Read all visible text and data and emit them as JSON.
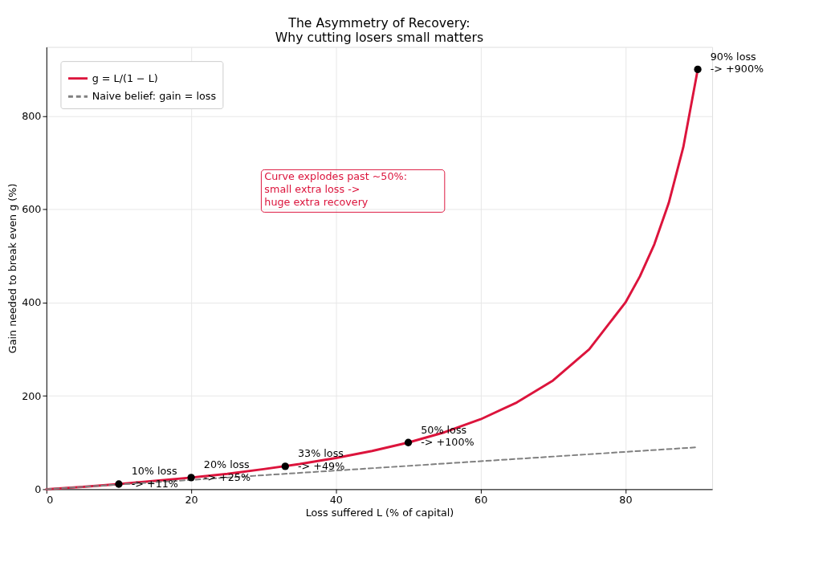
{
  "chart_data": {
    "type": "line",
    "title": "The Asymmetry of Recovery:\nWhy cutting losers small matters",
    "xlabel": "Loss suffered  L  (% of capital)",
    "ylabel": "Gain needed to break even  g  (%)",
    "xlim": [
      0,
      92
    ],
    "ylim": [
      0,
      948
    ],
    "xticks": [
      0,
      20,
      40,
      60,
      80
    ],
    "yticks": [
      0,
      200,
      400,
      600,
      800
    ],
    "grid": true,
    "legend": "top left",
    "series": [
      {
        "name": "g = L/(1 − L)",
        "color": "#dc143c",
        "type": "line",
        "line_style": "solid",
        "x": [
          0,
          5,
          10,
          15,
          20,
          25,
          30,
          35,
          40,
          45,
          50,
          55,
          60,
          65,
          70,
          75,
          80,
          82,
          84,
          86,
          88,
          90
        ],
        "values": [
          0,
          5,
          11,
          18,
          25,
          33,
          43,
          54,
          67,
          82,
          100,
          122,
          150,
          186,
          233,
          300,
          400,
          456,
          525,
          614,
          733,
          900
        ]
      },
      {
        "name": "Naive belief: gain = loss",
        "color": "#808080",
        "type": "line",
        "line_style": "dashed",
        "x": [
          0,
          90
        ],
        "values": [
          0,
          90
        ]
      },
      {
        "color": "#000000",
        "type": "scatter",
        "marker": "circle",
        "x": [
          10,
          20,
          33,
          50,
          90
        ],
        "values": [
          11,
          25,
          49,
          100,
          900
        ]
      }
    ],
    "annotations": [
      {
        "text": "10% loss\n-> +11%",
        "x": 10,
        "y": 11
      },
      {
        "text": "20% loss\n-> +25%",
        "x": 20,
        "y": 25
      },
      {
        "text": "33% loss\n-> +49%",
        "x": 33,
        "y": 49
      },
      {
        "text": "50% loss\n-> +100%",
        "x": 50,
        "y": 100
      },
      {
        "text": "90% loss\n-> +900%",
        "x": 90,
        "y": 900
      },
      "Curve explodes past ~50%:\nsmall extra loss ->\nhuge extra recovery"
    ]
  }
}
